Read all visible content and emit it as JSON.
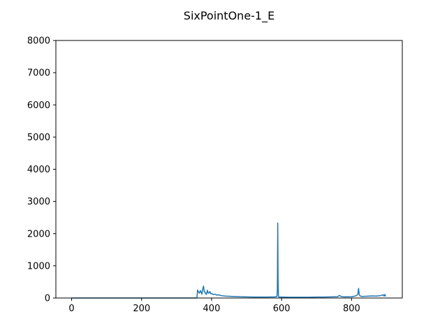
{
  "chart_data": {
    "type": "line",
    "title": "SixPointOne-1_E",
    "xlabel": "",
    "ylabel": "",
    "xlim": [
      -45,
      945
    ],
    "ylim": [
      0,
      8000
    ],
    "xticks": [
      0,
      200,
      400,
      600,
      800
    ],
    "xtick_labels": [
      "0",
      "200",
      "400",
      "600",
      "800"
    ],
    "yticks": [
      0,
      1000,
      2000,
      3000,
      4000,
      5000,
      6000,
      7000,
      8000
    ],
    "ytick_labels": [
      "0",
      "1000",
      "2000",
      "3000",
      "4000",
      "5000",
      "6000",
      "7000",
      "8000"
    ],
    "grid": false,
    "legend": "none",
    "series_color": "#1f77b4",
    "series": [
      {
        "x": [
          0,
          100,
          200,
          300,
          355,
          358,
          360,
          362,
          365,
          368,
          370,
          372,
          375,
          377,
          379,
          381,
          383,
          385,
          388,
          390,
          392,
          395,
          398,
          400,
          405,
          410,
          415,
          420,
          425,
          430,
          440,
          450,
          460,
          470,
          480,
          490,
          500,
          520,
          540,
          560,
          580,
          585,
          587,
          588,
          589,
          590,
          591,
          593,
          596,
          600,
          620,
          650,
          680,
          700,
          720,
          740,
          760,
          765,
          770,
          775,
          780,
          800,
          810,
          815,
          818,
          820,
          822,
          825,
          830,
          840,
          850,
          860,
          870,
          880,
          885,
          890,
          893,
          895,
          898
        ],
        "y": [
          0,
          0,
          0,
          0,
          0,
          10,
          250,
          200,
          150,
          230,
          180,
          120,
          300,
          370,
          200,
          180,
          140,
          110,
          240,
          160,
          150,
          200,
          130,
          140,
          110,
          120,
          90,
          100,
          80,
          70,
          60,
          55,
          50,
          45,
          40,
          38,
          35,
          30,
          30,
          30,
          35,
          40,
          60,
          300,
          2330,
          600,
          50,
          30,
          30,
          30,
          25,
          25,
          25,
          30,
          30,
          35,
          40,
          80,
          50,
          40,
          35,
          40,
          60,
          80,
          120,
          300,
          100,
          60,
          50,
          55,
          60,
          65,
          60,
          70,
          80,
          100,
          60,
          110,
          50
        ]
      }
    ]
  }
}
